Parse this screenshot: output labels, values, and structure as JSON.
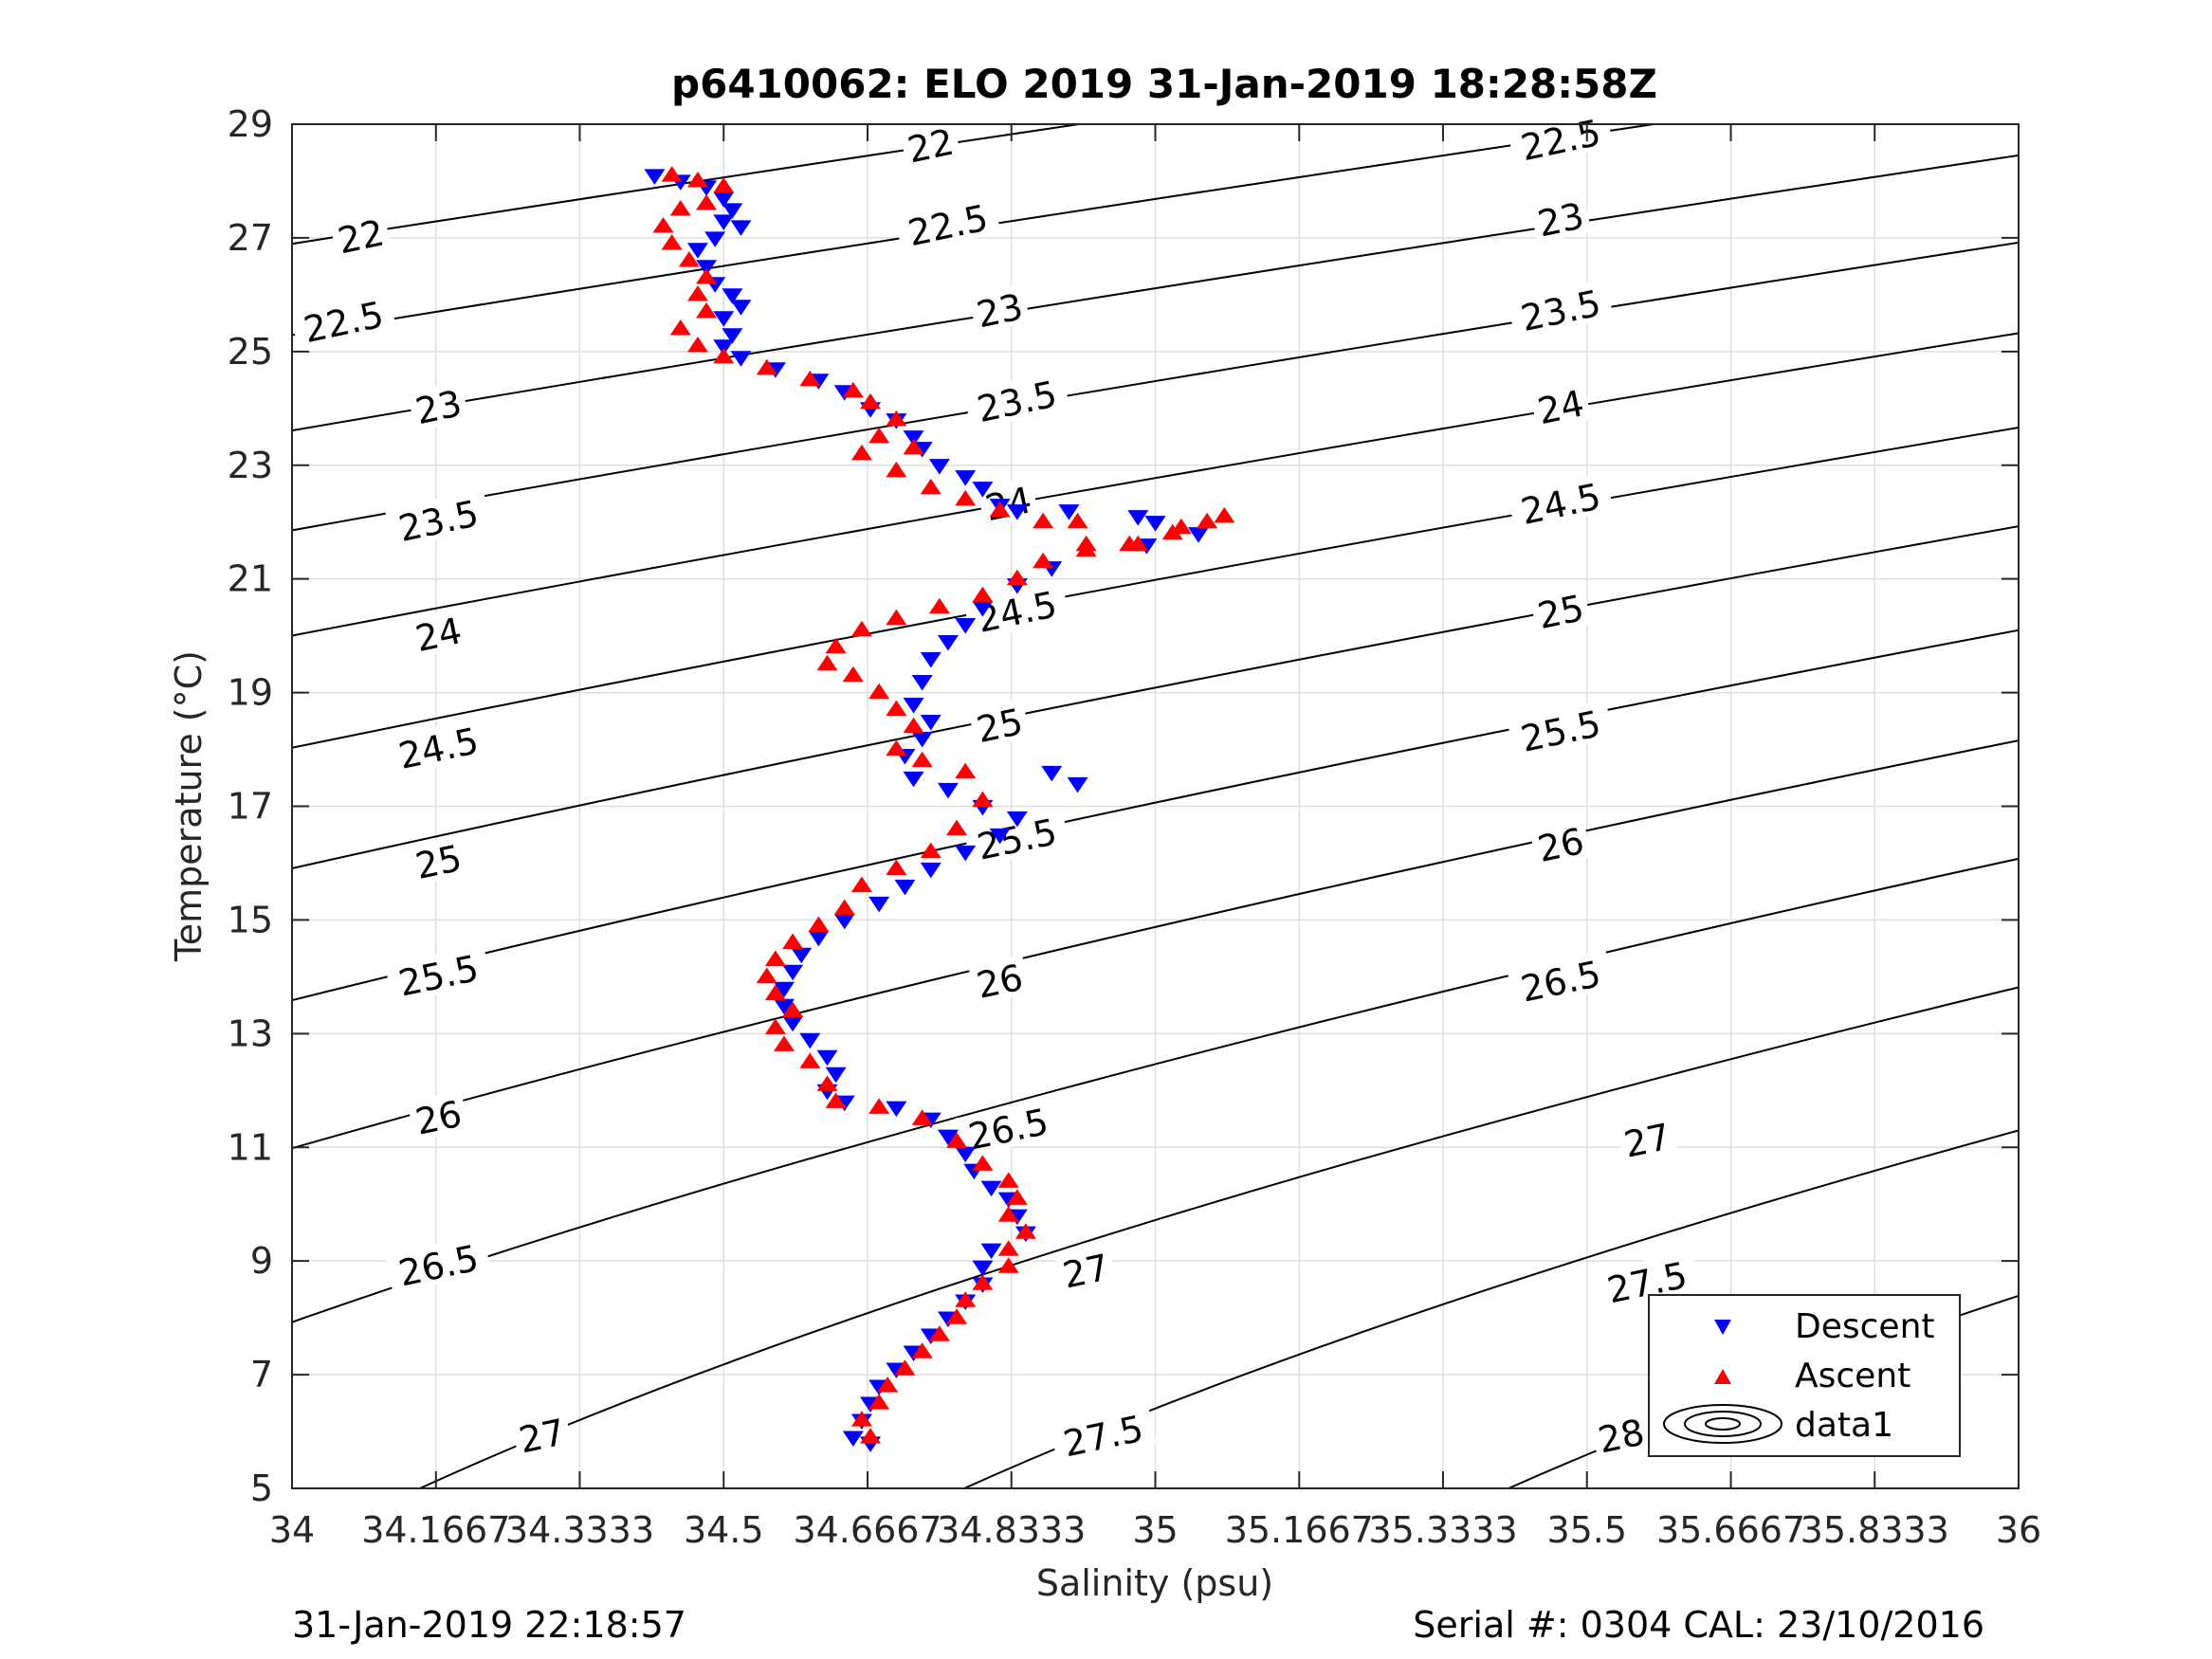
{
  "chart_data": {
    "type": "scatter",
    "title": "p6410062: ELO 2019 31-Jan-2019 18:28:58Z",
    "xlabel": "Salinity (psu)",
    "ylabel": "Temperature (°C)",
    "xlim": [
      34,
      36
    ],
    "ylim": [
      5,
      29
    ],
    "grid": true,
    "legend_position": "bottom-right",
    "x_ticks": [
      34,
      34.1667,
      34.3333,
      34.5,
      34.6667,
      34.8333,
      35,
      35.1667,
      35.3333,
      35.5,
      35.6667,
      35.8333,
      36
    ],
    "x_tick_labels": [
      "34",
      "34.1667",
      "34.3333",
      "34.5",
      "34.6667",
      "34.8333",
      "35",
      "35.1667",
      "35.3333",
      "35.5",
      "35.6667",
      "35.8333",
      "36"
    ],
    "y_ticks": [
      5,
      7,
      9,
      11,
      13,
      15,
      17,
      19,
      21,
      23,
      25,
      27,
      29
    ],
    "y_tick_labels": [
      "5",
      "7",
      "9",
      "11",
      "13",
      "15",
      "17",
      "19",
      "21",
      "23",
      "25",
      "27",
      "29"
    ],
    "contour_levels": [
      22,
      22.5,
      23,
      23.5,
      24,
      24.5,
      25,
      25.5,
      26,
      26.5,
      27,
      27.5,
      28
    ],
    "contour_labels": [
      {
        "text": "22",
        "x": 34.08,
        "y": 27.0
      },
      {
        "text": "22.5",
        "x": 34.06,
        "y": 25.5
      },
      {
        "text": "23",
        "x": 34.17,
        "y": 24.0
      },
      {
        "text": "23.5",
        "x": 34.17,
        "y": 22.0
      },
      {
        "text": "24",
        "x": 34.17,
        "y": 20.0
      },
      {
        "text": "24.5",
        "x": 34.17,
        "y": 18.0
      },
      {
        "text": "25",
        "x": 34.17,
        "y": 16.0
      },
      {
        "text": "25.5",
        "x": 34.17,
        "y": 14.0
      },
      {
        "text": "26",
        "x": 34.17,
        "y": 11.5
      },
      {
        "text": "26.5",
        "x": 34.17,
        "y": 8.9
      },
      {
        "text": "27",
        "x": 34.29,
        "y": 5.9
      },
      {
        "text": "22",
        "x": 34.74,
        "y": 28.6
      },
      {
        "text": "22.5",
        "x": 34.76,
        "y": 27.2
      },
      {
        "text": "23",
        "x": 34.82,
        "y": 25.7
      },
      {
        "text": "23.5",
        "x": 34.84,
        "y": 24.1
      },
      {
        "text": "24",
        "x": 34.83,
        "y": 22.3
      },
      {
        "text": "24.5",
        "x": 34.84,
        "y": 20.4
      },
      {
        "text": "25",
        "x": 34.82,
        "y": 18.4
      },
      {
        "text": "25.5",
        "x": 34.84,
        "y": 16.4
      },
      {
        "text": "26",
        "x": 34.82,
        "y": 13.9
      },
      {
        "text": "26.5",
        "x": 34.83,
        "y": 11.3
      },
      {
        "text": "27",
        "x": 34.92,
        "y": 8.8
      },
      {
        "text": "27.5",
        "x": 34.94,
        "y": 5.9
      },
      {
        "text": "22.5",
        "x": 35.47,
        "y": 28.7
      },
      {
        "text": "23",
        "x": 35.47,
        "y": 27.3
      },
      {
        "text": "23.5",
        "x": 35.47,
        "y": 25.7
      },
      {
        "text": "24",
        "x": 35.47,
        "y": 24.0
      },
      {
        "text": "24.5",
        "x": 35.47,
        "y": 22.3
      },
      {
        "text": "25",
        "x": 35.47,
        "y": 20.4
      },
      {
        "text": "25.5",
        "x": 35.47,
        "y": 18.3
      },
      {
        "text": "26",
        "x": 35.47,
        "y": 16.3
      },
      {
        "text": "26.5",
        "x": 35.47,
        "y": 13.9
      },
      {
        "text": "27",
        "x": 35.57,
        "y": 11.1
      },
      {
        "text": "27.5",
        "x": 35.57,
        "y": 8.6
      },
      {
        "text": "28",
        "x": 35.54,
        "y": 5.9
      }
    ],
    "series": [
      {
        "name": "Descent",
        "marker": "triangle-down",
        "color": "#0000ff",
        "points": [
          [
            34.42,
            28.1
          ],
          [
            34.45,
            28.0
          ],
          [
            34.48,
            27.9
          ],
          [
            34.5,
            27.7
          ],
          [
            34.51,
            27.5
          ],
          [
            34.5,
            27.3
          ],
          [
            34.52,
            27.2
          ],
          [
            34.49,
            27.0
          ],
          [
            34.47,
            26.8
          ],
          [
            34.48,
            26.5
          ],
          [
            34.49,
            26.2
          ],
          [
            34.51,
            26.0
          ],
          [
            34.52,
            25.8
          ],
          [
            34.5,
            25.6
          ],
          [
            34.51,
            25.3
          ],
          [
            34.5,
            25.1
          ],
          [
            34.52,
            24.9
          ],
          [
            34.56,
            24.7
          ],
          [
            34.61,
            24.5
          ],
          [
            34.64,
            24.3
          ],
          [
            34.67,
            24.0
          ],
          [
            34.7,
            23.8
          ],
          [
            34.72,
            23.5
          ],
          [
            34.73,
            23.3
          ],
          [
            34.75,
            23.0
          ],
          [
            34.78,
            22.8
          ],
          [
            34.8,
            22.6
          ],
          [
            34.82,
            22.3
          ],
          [
            34.84,
            22.2
          ],
          [
            34.9,
            22.2
          ],
          [
            34.98,
            22.1
          ],
          [
            35.0,
            22.0
          ],
          [
            35.05,
            21.8
          ],
          [
            34.99,
            21.6
          ],
          [
            34.88,
            21.2
          ],
          [
            34.84,
            20.9
          ],
          [
            34.8,
            20.5
          ],
          [
            34.78,
            20.2
          ],
          [
            34.76,
            19.9
          ],
          [
            34.74,
            19.6
          ],
          [
            34.73,
            19.2
          ],
          [
            34.72,
            18.8
          ],
          [
            34.74,
            18.5
          ],
          [
            34.73,
            18.2
          ],
          [
            34.71,
            17.9
          ],
          [
            34.72,
            17.5
          ],
          [
            34.76,
            17.3
          ],
          [
            34.8,
            17.0
          ],
          [
            34.84,
            16.8
          ],
          [
            34.88,
            17.6
          ],
          [
            34.91,
            17.4
          ],
          [
            34.82,
            16.5
          ],
          [
            34.78,
            16.2
          ],
          [
            34.74,
            15.9
          ],
          [
            34.71,
            15.6
          ],
          [
            34.68,
            15.3
          ],
          [
            34.64,
            15.0
          ],
          [
            34.61,
            14.7
          ],
          [
            34.59,
            14.4
          ],
          [
            34.58,
            14.1
          ],
          [
            34.57,
            13.8
          ],
          [
            34.57,
            13.5
          ],
          [
            34.58,
            13.2
          ],
          [
            34.6,
            12.9
          ],
          [
            34.62,
            12.6
          ],
          [
            34.63,
            12.3
          ],
          [
            34.62,
            12.0
          ],
          [
            34.64,
            11.8
          ],
          [
            34.7,
            11.7
          ],
          [
            34.74,
            11.5
          ],
          [
            34.76,
            11.2
          ],
          [
            34.78,
            10.9
          ],
          [
            34.79,
            10.6
          ],
          [
            34.81,
            10.3
          ],
          [
            34.83,
            10.1
          ],
          [
            34.84,
            9.8
          ],
          [
            34.85,
            9.5
          ],
          [
            34.81,
            9.2
          ],
          [
            34.8,
            8.9
          ],
          [
            34.8,
            8.6
          ],
          [
            34.78,
            8.3
          ],
          [
            34.76,
            8.0
          ],
          [
            34.74,
            7.7
          ],
          [
            34.72,
            7.4
          ],
          [
            34.7,
            7.1
          ],
          [
            34.68,
            6.8
          ],
          [
            34.67,
            6.5
          ],
          [
            34.66,
            6.2
          ],
          [
            34.65,
            5.9
          ],
          [
            34.67,
            5.8
          ]
        ]
      },
      {
        "name": "Ascent",
        "marker": "triangle-up",
        "color": "#ff0000",
        "points": [
          [
            34.44,
            28.1
          ],
          [
            34.47,
            28.0
          ],
          [
            34.5,
            27.9
          ],
          [
            34.48,
            27.6
          ],
          [
            34.45,
            27.5
          ],
          [
            34.43,
            27.2
          ],
          [
            34.44,
            26.9
          ],
          [
            34.46,
            26.6
          ],
          [
            34.48,
            26.3
          ],
          [
            34.47,
            26.0
          ],
          [
            34.48,
            25.7
          ],
          [
            34.45,
            25.4
          ],
          [
            34.47,
            25.1
          ],
          [
            34.5,
            24.9
          ],
          [
            34.55,
            24.7
          ],
          [
            34.6,
            24.5
          ],
          [
            34.65,
            24.3
          ],
          [
            34.67,
            24.1
          ],
          [
            34.7,
            23.8
          ],
          [
            34.68,
            23.5
          ],
          [
            34.66,
            23.2
          ],
          [
            34.72,
            23.3
          ],
          [
            34.7,
            22.9
          ],
          [
            34.74,
            22.6
          ],
          [
            34.78,
            22.4
          ],
          [
            34.82,
            22.2
          ],
          [
            34.87,
            22.0
          ],
          [
            34.91,
            22.0
          ],
          [
            34.92,
            21.6
          ],
          [
            34.97,
            21.6
          ],
          [
            35.02,
            21.8
          ],
          [
            35.06,
            22.0
          ],
          [
            35.08,
            22.1
          ],
          [
            35.03,
            21.9
          ],
          [
            34.98,
            21.6
          ],
          [
            34.92,
            21.5
          ],
          [
            34.87,
            21.3
          ],
          [
            34.84,
            21.0
          ],
          [
            34.8,
            20.7
          ],
          [
            34.75,
            20.5
          ],
          [
            34.7,
            20.3
          ],
          [
            34.66,
            20.1
          ],
          [
            34.63,
            19.8
          ],
          [
            34.62,
            19.5
          ],
          [
            34.65,
            19.3
          ],
          [
            34.68,
            19.0
          ],
          [
            34.7,
            18.7
          ],
          [
            34.72,
            18.4
          ],
          [
            34.7,
            18.0
          ],
          [
            34.73,
            17.8
          ],
          [
            34.78,
            17.6
          ],
          [
            34.8,
            17.1
          ],
          [
            34.77,
            16.6
          ],
          [
            34.74,
            16.2
          ],
          [
            34.7,
            15.9
          ],
          [
            34.66,
            15.6
          ],
          [
            34.64,
            15.2
          ],
          [
            34.61,
            14.9
          ],
          [
            34.58,
            14.6
          ],
          [
            34.56,
            14.3
          ],
          [
            34.55,
            14.0
          ],
          [
            34.56,
            13.7
          ],
          [
            34.58,
            13.4
          ],
          [
            34.56,
            13.1
          ],
          [
            34.57,
            12.8
          ],
          [
            34.6,
            12.5
          ],
          [
            34.62,
            12.1
          ],
          [
            34.63,
            11.8
          ],
          [
            34.68,
            11.7
          ],
          [
            34.73,
            11.5
          ],
          [
            34.77,
            11.1
          ],
          [
            34.8,
            10.7
          ],
          [
            34.83,
            10.4
          ],
          [
            34.84,
            10.1
          ],
          [
            34.83,
            9.8
          ],
          [
            34.85,
            9.5
          ],
          [
            34.83,
            9.2
          ],
          [
            34.83,
            8.9
          ],
          [
            34.8,
            8.6
          ],
          [
            34.78,
            8.3
          ],
          [
            34.77,
            8.0
          ],
          [
            34.75,
            7.7
          ],
          [
            34.73,
            7.4
          ],
          [
            34.71,
            7.1
          ],
          [
            34.69,
            6.8
          ],
          [
            34.68,
            6.5
          ],
          [
            34.66,
            6.2
          ],
          [
            34.67,
            5.9
          ]
        ]
      },
      {
        "name": "data1",
        "marker": "contour",
        "color": "#000000"
      }
    ]
  },
  "footer": {
    "left": "31-Jan-2019 22:18:57",
    "right": "Serial #: 0304  CAL: 23/10/2016"
  }
}
